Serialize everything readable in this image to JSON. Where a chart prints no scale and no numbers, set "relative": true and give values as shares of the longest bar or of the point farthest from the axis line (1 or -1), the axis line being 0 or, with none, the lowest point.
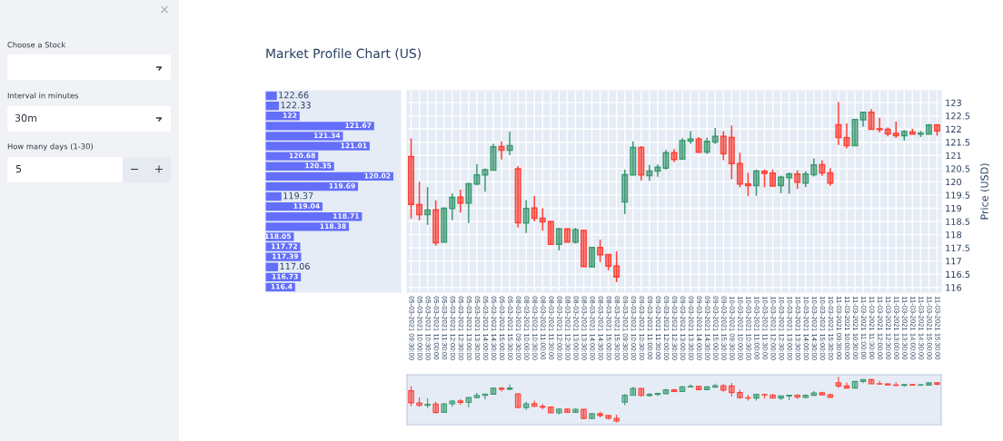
{
  "chart_data": [
    {
      "type": "bar",
      "title": "Market Profile Chart (US)",
      "annotations": [
        "×",
        "Choose a Stock",
        "Interval in minutes",
        "30m",
        "How many days (1-30)",
        "5",
        "−",
        "+"
      ],
      "orientation": "horizontal",
      "relative": true,
      "tick_labels": false,
      "categories": [
        "122.66",
        "122.33",
        "122",
        "121.67",
        "121.34",
        "121.01",
        "120.68",
        "120.35",
        "120.02",
        "119.69",
        "119.37",
        "119.04",
        "118.71",
        "118.38",
        "118.05",
        "117.72",
        "117.39",
        "117.06",
        "116.73",
        "116.4"
      ],
      "values": [
        0.09,
        0.107,
        0.268,
        0.85,
        0.606,
        0.815,
        0.413,
        0.537,
        1,
        0.724,
        0.126,
        0.447,
        0.755,
        0.653,
        0.223,
        0.273,
        0.28,
        0.1,
        0.278,
        0.233
      ],
      "color": "#636efa"
    },
    {
      "type": "candlestick",
      "ylabel": "Price (USD)",
      "grid": true,
      "ylim": [
        115.82,
        123.45
      ],
      "yticks": [
        116,
        116.5,
        117,
        117.5,
        118,
        118.5,
        119,
        119.5,
        120,
        120.5,
        121,
        121.5,
        122,
        122.5,
        123
      ],
      "categories": [
        "05-03-2021 09:30:00",
        "05-03-2021 10:00:00",
        "05-03-2021 10:30:00",
        "05-03-2021 11:00:00",
        "05-03-2021 11:30:00",
        "05-03-2021 12:00:00",
        "05-03-2021 12:30:00",
        "05-03-2021 13:00:00",
        "05-03-2021 13:30:00",
        "05-03-2021 14:00:00",
        "05-03-2021 14:30:00",
        "05-03-2021 15:00:00",
        "05-03-2021 15:30:00",
        "08-03-2021 09:30:00",
        "08-03-2021 10:00:00",
        "08-03-2021 10:30:00",
        "08-03-2021 11:00:00",
        "08-03-2021 11:30:00",
        "08-03-2021 12:00:00",
        "08-03-2021 12:30:00",
        "08-03-2021 13:00:00",
        "08-03-2021 13:30:00",
        "08-03-2021 14:00:00",
        "08-03-2021 14:30:00",
        "08-03-2021 15:00:00",
        "08-03-2021 15:30:00",
        "09-03-2021 09:30:00",
        "09-03-2021 10:00:00",
        "09-03-2021 10:30:00",
        "09-03-2021 11:00:00",
        "09-03-2021 11:30:00",
        "09-03-2021 12:00:00",
        "09-03-2021 12:30:00",
        "09-03-2021 13:00:00",
        "09-03-2021 13:30:00",
        "09-03-2021 14:00:00",
        "09-03-2021 14:30:00",
        "09-03-2021 15:00:00",
        "09-03-2021 15:30:00",
        "10-03-2021 09:30:00",
        "10-03-2021 10:00:00",
        "10-03-2021 10:30:00",
        "10-03-2021 11:00:00",
        "10-03-2021 11:30:00",
        "10-03-2021 12:00:00",
        "10-03-2021 12:30:00",
        "10-03-2021 13:00:00",
        "10-03-2021 13:30:00",
        "10-03-2021 14:00:00",
        "10-03-2021 14:30:00",
        "10-03-2021 15:00:00",
        "10-03-2021 15:30:00",
        "11-03-2021 09:30:00",
        "11-03-2021 10:00:00",
        "11-03-2021 10:30:00",
        "11-03-2021 11:00:00",
        "11-03-2021 11:30:00",
        "11-03-2021 12:00:00",
        "11-03-2021 12:30:00",
        "11-03-2021 13:00:00",
        "11-03-2021 13:30:00",
        "11-03-2021 14:00:00",
        "11-03-2021 14:30:00",
        "11-03-2021 15:00:00",
        "11-03-2021 15:30:00"
      ],
      "ohlc": [
        [
          120.96,
          121.65,
          118.61,
          119.15
        ],
        [
          119.14,
          120.0,
          118.54,
          118.76
        ],
        [
          118.76,
          119.8,
          118.37,
          118.93
        ],
        [
          118.94,
          119.3,
          117.58,
          117.69
        ],
        [
          117.72,
          119.03,
          117.72,
          119.0
        ],
        [
          118.99,
          119.56,
          118.55,
          119.41
        ],
        [
          119.42,
          119.7,
          118.84,
          119.2
        ],
        [
          119.2,
          119.95,
          118.44,
          119.93
        ],
        [
          119.92,
          120.67,
          119.87,
          120.26
        ],
        [
          120.26,
          120.5,
          119.63,
          120.46
        ],
        [
          120.44,
          121.44,
          120.44,
          121.33
        ],
        [
          121.34,
          121.53,
          120.85,
          121.2
        ],
        [
          121.2,
          121.9,
          121.01,
          121.37
        ],
        [
          120.49,
          120.6,
          118.27,
          118.45
        ],
        [
          118.44,
          119.3,
          118.06,
          118.99
        ],
        [
          119.01,
          119.46,
          118.5,
          118.62
        ],
        [
          118.62,
          119.0,
          118.15,
          118.48
        ],
        [
          118.5,
          118.5,
          117.63,
          117.63
        ],
        [
          117.63,
          118.26,
          117.4,
          118.22
        ],
        [
          118.22,
          118.24,
          117.72,
          117.72
        ],
        [
          117.72,
          118.26,
          117.66,
          118.18
        ],
        [
          118.16,
          118.19,
          116.78,
          116.79
        ],
        [
          116.78,
          117.51,
          116.78,
          117.51
        ],
        [
          117.51,
          117.81,
          116.96,
          117.24
        ],
        [
          117.25,
          117.25,
          116.65,
          116.81
        ],
        [
          116.81,
          117.37,
          116.2,
          116.4
        ],
        [
          119.24,
          120.46,
          118.78,
          120.27
        ],
        [
          120.26,
          121.53,
          120.26,
          121.3
        ],
        [
          121.3,
          121.35,
          120.05,
          120.26
        ],
        [
          120.24,
          120.64,
          120.04,
          120.41
        ],
        [
          120.41,
          120.66,
          120.19,
          120.55
        ],
        [
          120.52,
          121.21,
          120.46,
          121.1
        ],
        [
          121.1,
          121.24,
          120.74,
          120.85
        ],
        [
          120.86,
          121.65,
          120.86,
          121.56
        ],
        [
          121.54,
          121.92,
          121.44,
          121.62
        ],
        [
          121.62,
          121.7,
          121.1,
          121.12
        ],
        [
          121.13,
          121.67,
          121.05,
          121.53
        ],
        [
          121.51,
          122.04,
          121.44,
          121.72
        ],
        [
          121.72,
          121.92,
          120.82,
          121.06
        ],
        [
          121.68,
          122.13,
          120.1,
          120.69
        ],
        [
          120.69,
          121.1,
          119.79,
          119.92
        ],
        [
          119.92,
          120.35,
          119.46,
          119.86
        ],
        [
          119.86,
          120.46,
          119.47,
          120.41
        ],
        [
          120.4,
          120.47,
          119.79,
          120.32
        ],
        [
          120.33,
          120.46,
          119.84,
          119.84
        ],
        [
          119.86,
          120.23,
          119.57,
          120.18
        ],
        [
          120.16,
          120.36,
          119.55,
          120.3
        ],
        [
          120.3,
          120.44,
          119.73,
          119.99
        ],
        [
          119.95,
          120.4,
          119.8,
          120.3
        ],
        [
          120.27,
          120.89,
          120.2,
          120.64
        ],
        [
          120.65,
          120.81,
          120.23,
          120.34
        ],
        [
          120.34,
          120.52,
          119.85,
          119.95
        ],
        [
          122.16,
          123.02,
          121.4,
          121.68
        ],
        [
          121.67,
          122.21,
          121.27,
          121.37
        ],
        [
          121.37,
          122.38,
          121.37,
          122.36
        ],
        [
          122.35,
          122.63,
          122.09,
          122.63
        ],
        [
          122.63,
          122.75,
          121.99,
          121.99
        ],
        [
          122.01,
          122.43,
          121.87,
          121.98
        ],
        [
          121.99,
          122.06,
          121.72,
          121.82
        ],
        [
          121.83,
          122.28,
          121.66,
          121.75
        ],
        [
          121.75,
          121.96,
          121.56,
          121.9
        ],
        [
          121.89,
          122.01,
          121.81,
          121.81
        ],
        [
          121.81,
          121.93,
          121.69,
          121.84
        ],
        [
          121.81,
          122.19,
          121.81,
          122.15
        ],
        [
          122.15,
          122.19,
          121.75,
          121.93
        ]
      ]
    }
  ]
}
